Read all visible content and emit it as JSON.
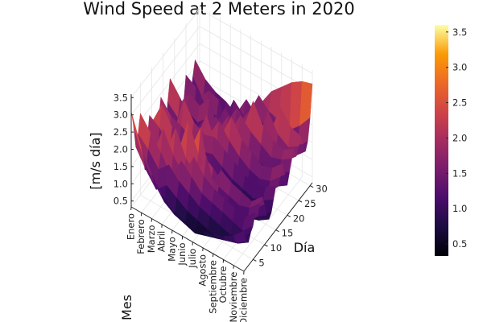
{
  "chart_data": {
    "type": "surface",
    "title": "Wind Speed at 2 Meters in 2020",
    "xlabel": "Mes",
    "ylabel": "Día",
    "zlabel": "[m/s día]",
    "months": [
      "Enero",
      "Febrero",
      "Marzo",
      "Abril",
      "Mayo",
      "Junio",
      "Julio",
      "Agosto",
      "Septiembre",
      "Octubre",
      "Noviembre",
      "Diciembre"
    ],
    "day_ticks": [
      5,
      10,
      15,
      20,
      25,
      30
    ],
    "z_ticks": [
      0.5,
      1.0,
      1.5,
      2.0,
      2.5,
      3.0,
      3.5
    ],
    "z_tick_labels": [
      "0.5",
      "1.0",
      "1.5",
      "2.0",
      "2.5",
      "3.0",
      "3.5"
    ],
    "zlim": [
      0.33,
      3.6
    ],
    "colorbar": {
      "ticks": [
        0.5,
        1.0,
        1.5,
        2.0,
        2.5,
        3.0,
        3.5
      ],
      "labels": [
        "0.5",
        "1.0",
        "1.5",
        "2.0",
        "2.5",
        "3.0",
        "3.5"
      ],
      "range": [
        0.33,
        3.6
      ],
      "colormap": "inferno"
    },
    "grid": true,
    "values": [
      [
        3.1,
        2.6,
        1.9,
        2.2,
        2.7,
        1.4,
        0.9,
        1.7,
        2.3,
        2.0,
        1.5,
        1.1,
        1.8,
        2.4,
        1.6,
        1.2,
        2.0,
        2.6,
        1.7,
        1.3,
        1.9,
        1.5,
        1.0,
        1.4,
        2.1,
        1.6,
        1.2,
        1.8,
        2.2,
        1.5,
        1.7
      ],
      [
        2.2,
        1.8,
        1.4,
        1.9,
        2.3,
        1.6,
        1.0,
        1.5,
        2.1,
        2.7,
        1.9,
        1.3,
        1.6,
        2.0,
        1.4,
        1.1,
        1.7,
        2.2,
        1.5,
        1.0,
        1.6,
        2.0,
        1.4,
        1.1,
        1.9,
        1.5,
        1.0,
        1.3,
        1.8,
        1.2,
        1.4
      ],
      [
        1.6,
        1.3,
        1.0,
        1.5,
        1.9,
        2.5,
        1.7,
        1.2,
        1.6,
        2.2,
        1.5,
        1.0,
        1.4,
        1.9,
        2.6,
        1.8,
        1.3,
        1.7,
        1.2,
        0.9,
        1.4,
        1.8,
        1.3,
        1.0,
        1.5,
        1.9,
        1.4,
        1.1,
        1.6,
        1.3,
        1.2
      ],
      [
        1.2,
        0.9,
        1.3,
        1.8,
        1.4,
        1.9,
        2.6,
        1.8,
        1.3,
        1.7,
        1.2,
        0.8,
        1.3,
        1.7,
        2.1,
        1.5,
        1.0,
        1.4,
        1.8,
        1.3,
        1.7,
        2.2,
        1.6,
        1.1,
        1.4,
        1.8,
        1.3,
        1.0,
        1.5,
        1.1,
        1.0
      ],
      [
        0.9,
        0.7,
        1.1,
        1.5,
        2.0,
        1.5,
        1.9,
        2.9,
        2.0,
        1.4,
        1.0,
        0.7,
        1.1,
        1.5,
        1.9,
        2.4,
        1.7,
        1.2,
        1.6,
        2.0,
        1.5,
        1.1,
        1.5,
        1.9,
        1.4,
        1.0,
        1.4,
        1.8,
        1.3,
        1.0,
        0.9
      ],
      [
        0.8,
        0.6,
        0.9,
        1.3,
        1.7,
        2.2,
        1.6,
        2.1,
        2.8,
        1.9,
        1.3,
        0.9,
        1.2,
        1.6,
        2.0,
        1.6,
        2.3,
        1.8,
        1.3,
        1.7,
        2.1,
        1.6,
        1.2,
        1.6,
        2.0,
        1.5,
        1.1,
        1.5,
        1.9,
        1.4,
        1.2
      ],
      [
        0.7,
        0.5,
        0.8,
        1.1,
        1.4,
        1.8,
        2.3,
        1.7,
        1.3,
        1.7,
        1.2,
        0.8,
        1.0,
        1.4,
        1.8,
        1.4,
        1.9,
        2.5,
        1.8,
        1.3,
        1.7,
        2.2,
        1.7,
        1.2,
        1.6,
        2.0,
        1.5,
        1.1,
        1.6,
        2.1,
        1.8
      ],
      [
        0.8,
        0.6,
        0.7,
        1.0,
        1.3,
        1.6,
        1.2,
        1.5,
        1.9,
        1.4,
        1.0,
        0.7,
        0.9,
        1.2,
        1.6,
        1.2,
        1.6,
        2.0,
        1.5,
        1.1,
        1.5,
        1.9,
        2.7,
        1.9,
        1.4,
        1.8,
        1.3,
        1.0,
        1.4,
        1.8,
        2.3
      ],
      [
        0.9,
        0.7,
        0.6,
        0.9,
        1.2,
        1.5,
        1.1,
        1.4,
        1.7,
        1.3,
        0.9,
        0.6,
        0.8,
        1.1,
        1.4,
        1.1,
        1.4,
        1.8,
        1.3,
        1.0,
        1.3,
        1.7,
        2.1,
        1.6,
        2.4,
        1.7,
        1.2,
        0.9,
        1.3,
        1.7,
        2.6
      ],
      [
        1.0,
        0.8,
        0.7,
        0.8,
        1.1,
        1.4,
        1.0,
        1.3,
        1.6,
        1.2,
        0.8,
        0.6,
        0.7,
        1.0,
        1.3,
        1.0,
        1.3,
        1.6,
        1.2,
        0.9,
        1.2,
        1.5,
        1.9,
        1.5,
        1.9,
        2.6,
        1.8,
        1.3,
        1.2,
        1.6,
        2.9
      ],
      [
        1.2,
        0.9,
        0.8,
        0.9,
        1.0,
        1.3,
        1.1,
        1.4,
        1.5,
        1.2,
        0.9,
        0.7,
        0.8,
        1.1,
        1.4,
        1.2,
        1.4,
        1.7,
        1.3,
        1.0,
        1.3,
        1.6,
        1.8,
        1.4,
        1.7,
        2.2,
        1.6,
        1.2,
        1.4,
        1.9,
        3.1
      ],
      [
        1.5,
        1.1,
        1.0,
        1.2,
        1.3,
        1.6,
        1.4,
        1.7,
        1.8,
        1.5,
        1.1,
        0.9,
        1.0,
        1.3,
        1.6,
        1.5,
        1.7,
        2.0,
        1.6,
        1.2,
        1.5,
        1.8,
        2.0,
        1.7,
        1.9,
        2.1,
        1.8,
        1.5,
        1.7,
        2.3,
        3.2
      ]
    ]
  }
}
